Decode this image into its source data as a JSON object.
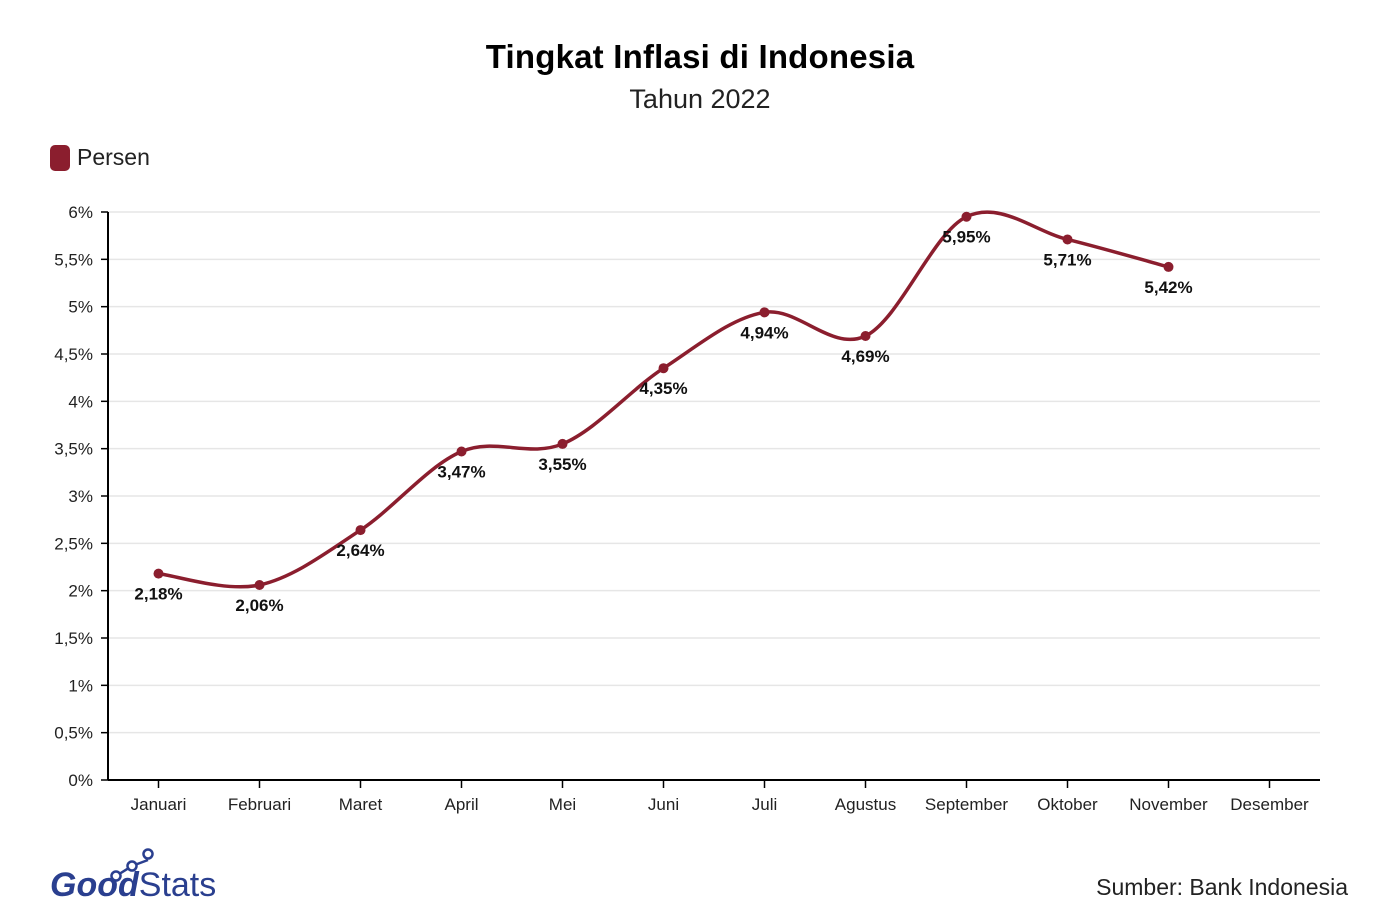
{
  "chart_data": {
    "type": "line",
    "title": "Tingkat Inflasi di Indonesia",
    "subtitle": "Tahun 2022",
    "categories": [
      "Januari",
      "Februari",
      "Maret",
      "April",
      "Mei",
      "Juni",
      "Juli",
      "Agustus",
      "September",
      "Oktober",
      "November",
      "Desember"
    ],
    "series": [
      {
        "name": "Persen",
        "color": "#8b1e2e",
        "values": [
          2.18,
          2.06,
          2.64,
          3.47,
          3.55,
          4.35,
          4.94,
          4.69,
          5.95,
          5.71,
          5.42,
          null
        ],
        "labels": [
          "2,18%",
          "2,06%",
          "2,64%",
          "3,47%",
          "3,55%",
          "4,35%",
          "4,94%",
          "4,69%",
          "5,95%",
          "5,71%",
          "5,42%",
          ""
        ]
      }
    ],
    "ylim": [
      0,
      6
    ],
    "yticks": [
      0,
      0.5,
      1,
      1.5,
      2,
      2.5,
      3,
      3.5,
      4,
      4.5,
      5,
      5.5,
      6
    ],
    "ytick_labels": [
      "0%",
      "0,5%",
      "1%",
      "1,5%",
      "2%",
      "2,5%",
      "3%",
      "3,5%",
      "4%",
      "4,5%",
      "5%",
      "5,5%",
      "6%"
    ],
    "grid": true,
    "legend_position": "top-left",
    "xlabel": "",
    "ylabel": ""
  },
  "footer": {
    "source": "Sumber: Bank Indonesia",
    "logo_text": "GoodStats"
  },
  "colors": {
    "line": "#8b1e2e",
    "grid": "#e6e6e6",
    "axis": "#000000",
    "logo": "#2a3f8f"
  }
}
